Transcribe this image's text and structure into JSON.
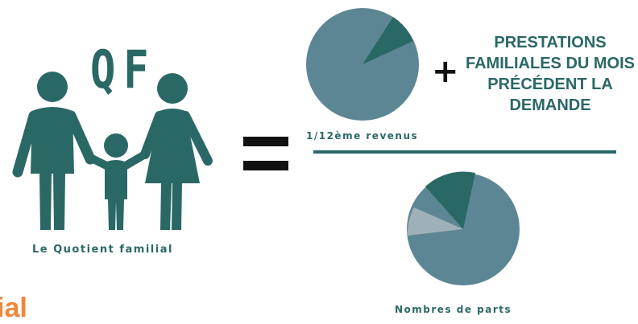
{
  "diagram": {
    "logo_text": "QF",
    "family_caption": "Le Quotient familial",
    "equals_symbol": "=",
    "plus_symbol": "+",
    "numerator_label": "1/12ème revenus",
    "numerator_addend": "PRESTATIONS FAMILIALES DU MOIS PRÉCÉDENT LA DEMANDE",
    "denominator_label": "Nombres de parts",
    "cropped_text_fragment": "ial"
  },
  "colors": {
    "teal_dark": "#2a6866",
    "slate": "#5d8694",
    "gray_light": "#9fb1b8",
    "black": "#111111",
    "orange": "#f0873a"
  },
  "icons": [
    "family-icon"
  ]
}
